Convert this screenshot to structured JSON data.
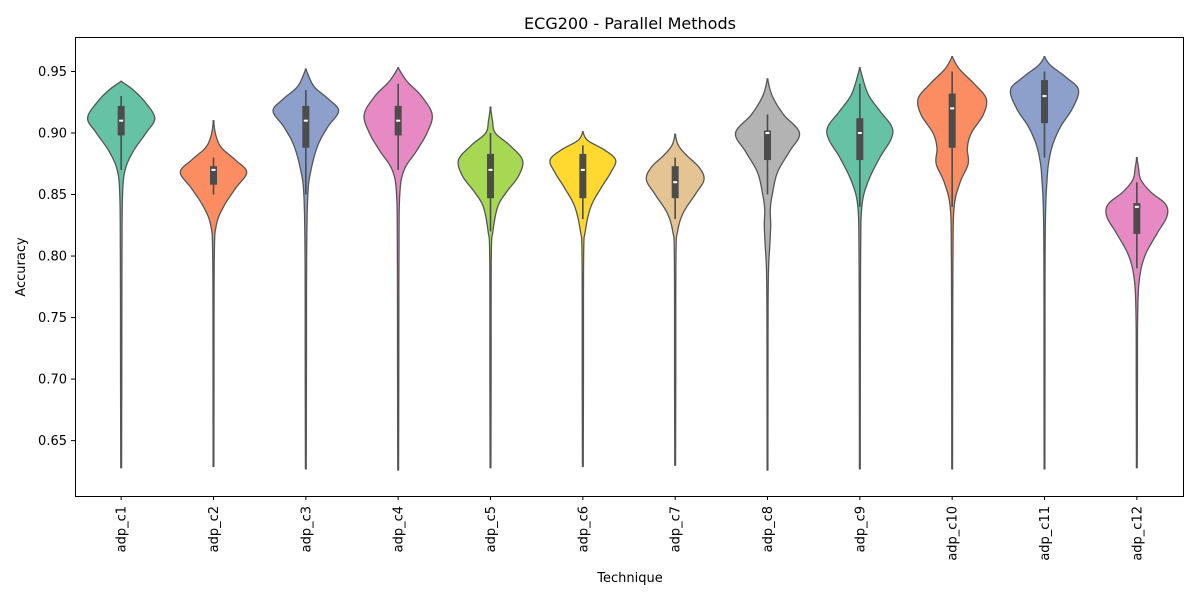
{
  "chart_data": {
    "type": "violin",
    "title": "ECG200 - Parallel Methods",
    "xlabel": "Technique",
    "ylabel": "Accuracy",
    "ylim": [
      0.605,
      0.978
    ],
    "yticks": [
      0.65,
      0.7,
      0.75,
      0.8,
      0.85,
      0.9,
      0.95
    ],
    "ytick_labels": [
      "0.65",
      "0.70",
      "0.75",
      "0.80",
      "0.85",
      "0.90",
      "0.95"
    ],
    "grid": false,
    "categories": [
      "adp_c1",
      "adp_c2",
      "adp_c3",
      "adp_c4",
      "adp_c5",
      "adp_c6",
      "adp_c7",
      "adp_c8",
      "adp_c9",
      "adp_c10",
      "adp_c11",
      "adp_c12"
    ],
    "series": [
      {
        "color": "#66c2a5",
        "kde_min": 0.628,
        "kde_max": 0.942,
        "q1": 0.898,
        "median": 0.91,
        "q3": 0.922,
        "whisker_low": 0.87,
        "whisker_high": 0.93,
        "density": [
          [
            0.628,
            0.01
          ],
          [
            0.7,
            0.015
          ],
          [
            0.8,
            0.02
          ],
          [
            0.85,
            0.035
          ],
          [
            0.87,
            0.1
          ],
          [
            0.885,
            0.3
          ],
          [
            0.9,
            0.62
          ],
          [
            0.912,
            0.84
          ],
          [
            0.925,
            0.6
          ],
          [
            0.935,
            0.3
          ],
          [
            0.942,
            0.0
          ]
        ]
      },
      {
        "color": "#fc8d62",
        "kde_min": 0.629,
        "kde_max": 0.91,
        "q1": 0.858,
        "median": 0.87,
        "q3": 0.873,
        "whisker_low": 0.85,
        "whisker_high": 0.88,
        "density": [
          [
            0.629,
            0.01
          ],
          [
            0.7,
            0.012
          ],
          [
            0.8,
            0.02
          ],
          [
            0.825,
            0.07
          ],
          [
            0.84,
            0.25
          ],
          [
            0.855,
            0.55
          ],
          [
            0.868,
            0.83
          ],
          [
            0.878,
            0.55
          ],
          [
            0.888,
            0.2
          ],
          [
            0.898,
            0.06
          ],
          [
            0.91,
            0.0
          ]
        ]
      },
      {
        "color": "#8da0cb",
        "kde_min": 0.627,
        "kde_max": 0.952,
        "q1": 0.888,
        "median": 0.91,
        "q3": 0.922,
        "whisker_low": 0.85,
        "whisker_high": 0.935,
        "density": [
          [
            0.627,
            0.01
          ],
          [
            0.7,
            0.015
          ],
          [
            0.8,
            0.02
          ],
          [
            0.85,
            0.05
          ],
          [
            0.87,
            0.13
          ],
          [
            0.89,
            0.3
          ],
          [
            0.905,
            0.55
          ],
          [
            0.918,
            0.82
          ],
          [
            0.928,
            0.55
          ],
          [
            0.938,
            0.2
          ],
          [
            0.952,
            0.0
          ]
        ]
      },
      {
        "color": "#e78ac3",
        "kde_min": 0.626,
        "kde_max": 0.953,
        "q1": 0.898,
        "median": 0.91,
        "q3": 0.922,
        "whisker_low": 0.87,
        "whisker_high": 0.94,
        "density": [
          [
            0.626,
            0.01
          ],
          [
            0.7,
            0.015
          ],
          [
            0.8,
            0.02
          ],
          [
            0.85,
            0.04
          ],
          [
            0.87,
            0.15
          ],
          [
            0.885,
            0.45
          ],
          [
            0.9,
            0.72
          ],
          [
            0.915,
            0.85
          ],
          [
            0.93,
            0.58
          ],
          [
            0.942,
            0.22
          ],
          [
            0.953,
            0.0
          ]
        ]
      },
      {
        "color": "#a6d854",
        "kde_min": 0.628,
        "kde_max": 0.921,
        "q1": 0.847,
        "median": 0.87,
        "q3": 0.883,
        "whisker_low": 0.82,
        "whisker_high": 0.9,
        "density": [
          [
            0.628,
            0.01
          ],
          [
            0.7,
            0.015
          ],
          [
            0.8,
            0.02
          ],
          [
            0.82,
            0.06
          ],
          [
            0.84,
            0.18
          ],
          [
            0.852,
            0.4
          ],
          [
            0.865,
            0.7
          ],
          [
            0.878,
            0.8
          ],
          [
            0.89,
            0.48
          ],
          [
            0.9,
            0.12
          ],
          [
            0.91,
            0.05
          ],
          [
            0.921,
            0.0
          ]
        ]
      },
      {
        "color": "#ffd92f",
        "kde_min": 0.629,
        "kde_max": 0.901,
        "q1": 0.847,
        "median": 0.87,
        "q3": 0.883,
        "whisker_low": 0.83,
        "whisker_high": 0.89,
        "density": [
          [
            0.629,
            0.01
          ],
          [
            0.7,
            0.015
          ],
          [
            0.8,
            0.02
          ],
          [
            0.82,
            0.06
          ],
          [
            0.84,
            0.2
          ],
          [
            0.855,
            0.45
          ],
          [
            0.868,
            0.7
          ],
          [
            0.878,
            0.82
          ],
          [
            0.886,
            0.55
          ],
          [
            0.894,
            0.12
          ],
          [
            0.901,
            0.0
          ]
        ]
      },
      {
        "color": "#e5c494",
        "kde_min": 0.63,
        "kde_max": 0.899,
        "q1": 0.847,
        "median": 0.86,
        "q3": 0.873,
        "whisker_low": 0.83,
        "whisker_high": 0.88,
        "density": [
          [
            0.63,
            0.01
          ],
          [
            0.7,
            0.015
          ],
          [
            0.8,
            0.02
          ],
          [
            0.82,
            0.06
          ],
          [
            0.835,
            0.2
          ],
          [
            0.85,
            0.5
          ],
          [
            0.862,
            0.72
          ],
          [
            0.872,
            0.6
          ],
          [
            0.882,
            0.28
          ],
          [
            0.89,
            0.08
          ],
          [
            0.899,
            0.0
          ]
        ]
      },
      {
        "color": "#b3b3b3",
        "kde_min": 0.626,
        "kde_max": 0.944,
        "q1": 0.878,
        "median": 0.9,
        "q3": 0.902,
        "whisker_low": 0.85,
        "whisker_high": 0.915,
        "density": [
          [
            0.626,
            0.01
          ],
          [
            0.7,
            0.012
          ],
          [
            0.78,
            0.02
          ],
          [
            0.81,
            0.06
          ],
          [
            0.825,
            0.08
          ],
          [
            0.838,
            0.07
          ],
          [
            0.85,
            0.12
          ],
          [
            0.868,
            0.25
          ],
          [
            0.885,
            0.55
          ],
          [
            0.9,
            0.8
          ],
          [
            0.915,
            0.4
          ],
          [
            0.93,
            0.12
          ],
          [
            0.944,
            0.0
          ]
        ]
      },
      {
        "color": "#66c2a5",
        "kde_min": 0.627,
        "kde_max": 0.953,
        "q1": 0.878,
        "median": 0.9,
        "q3": 0.912,
        "whisker_low": 0.84,
        "whisker_high": 0.94,
        "density": [
          [
            0.627,
            0.01
          ],
          [
            0.7,
            0.012
          ],
          [
            0.8,
            0.02
          ],
          [
            0.84,
            0.05
          ],
          [
            0.86,
            0.2
          ],
          [
            0.88,
            0.5
          ],
          [
            0.895,
            0.78
          ],
          [
            0.905,
            0.8
          ],
          [
            0.918,
            0.5
          ],
          [
            0.932,
            0.2
          ],
          [
            0.953,
            0.0
          ]
        ]
      },
      {
        "color": "#fc8d62",
        "kde_min": 0.627,
        "kde_max": 0.962,
        "q1": 0.888,
        "median": 0.92,
        "q3": 0.932,
        "whisker_low": 0.84,
        "whisker_high": 0.95,
        "density": [
          [
            0.627,
            0.01
          ],
          [
            0.7,
            0.012
          ],
          [
            0.8,
            0.02
          ],
          [
            0.84,
            0.05
          ],
          [
            0.86,
            0.2
          ],
          [
            0.875,
            0.4
          ],
          [
            0.888,
            0.38
          ],
          [
            0.9,
            0.48
          ],
          [
            0.915,
            0.78
          ],
          [
            0.928,
            0.85
          ],
          [
            0.94,
            0.55
          ],
          [
            0.952,
            0.18
          ],
          [
            0.962,
            0.0
          ]
        ]
      },
      {
        "color": "#8da0cb",
        "kde_min": 0.627,
        "kde_max": 0.962,
        "q1": 0.908,
        "median": 0.93,
        "q3": 0.943,
        "whisker_low": 0.88,
        "whisker_high": 0.95,
        "density": [
          [
            0.627,
            0.01
          ],
          [
            0.7,
            0.012
          ],
          [
            0.8,
            0.015
          ],
          [
            0.84,
            0.03
          ],
          [
            0.86,
            0.06
          ],
          [
            0.875,
            0.1
          ],
          [
            0.89,
            0.2
          ],
          [
            0.905,
            0.4
          ],
          [
            0.92,
            0.7
          ],
          [
            0.935,
            0.85
          ],
          [
            0.945,
            0.55
          ],
          [
            0.955,
            0.15
          ],
          [
            0.962,
            0.0
          ]
        ]
      },
      {
        "color": "#e78ac3",
        "kde_min": 0.628,
        "kde_max": 0.88,
        "q1": 0.818,
        "median": 0.84,
        "q3": 0.843,
        "whisker_low": 0.79,
        "whisker_high": 0.86,
        "density": [
          [
            0.628,
            0.01
          ],
          [
            0.7,
            0.015
          ],
          [
            0.75,
            0.02
          ],
          [
            0.78,
            0.06
          ],
          [
            0.8,
            0.2
          ],
          [
            0.818,
            0.5
          ],
          [
            0.832,
            0.75
          ],
          [
            0.842,
            0.72
          ],
          [
            0.852,
            0.35
          ],
          [
            0.862,
            0.1
          ],
          [
            0.872,
            0.04
          ],
          [
            0.88,
            0.0
          ]
        ]
      }
    ]
  }
}
